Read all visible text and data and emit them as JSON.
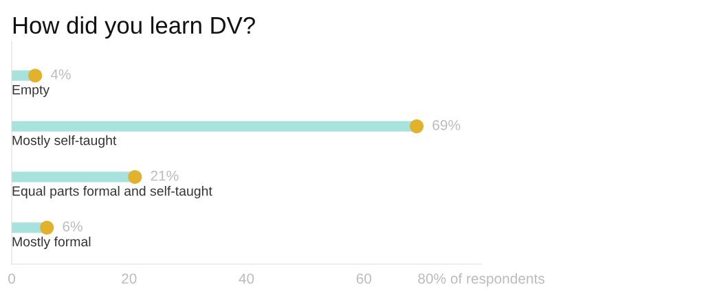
{
  "chart_data": {
    "type": "lollipop",
    "orientation": "horizontal",
    "title": "How did you learn DV?",
    "categories": [
      "Empty",
      "Mostly self-taught",
      "Equal parts formal and self-taught",
      "Mostly formal"
    ],
    "series": [
      {
        "color": "#e2b22c",
        "marker": "circle",
        "values": [
          4,
          69,
          21,
          6
        ],
        "value_labels": [
          "4%",
          "69%",
          "21%",
          "6%"
        ]
      }
    ],
    "xlim": [
      0,
      80
    ],
    "xticks": [
      0,
      20,
      40,
      60,
      {
        "value": 80,
        "label": "80% of respondents"
      }
    ]
  }
}
